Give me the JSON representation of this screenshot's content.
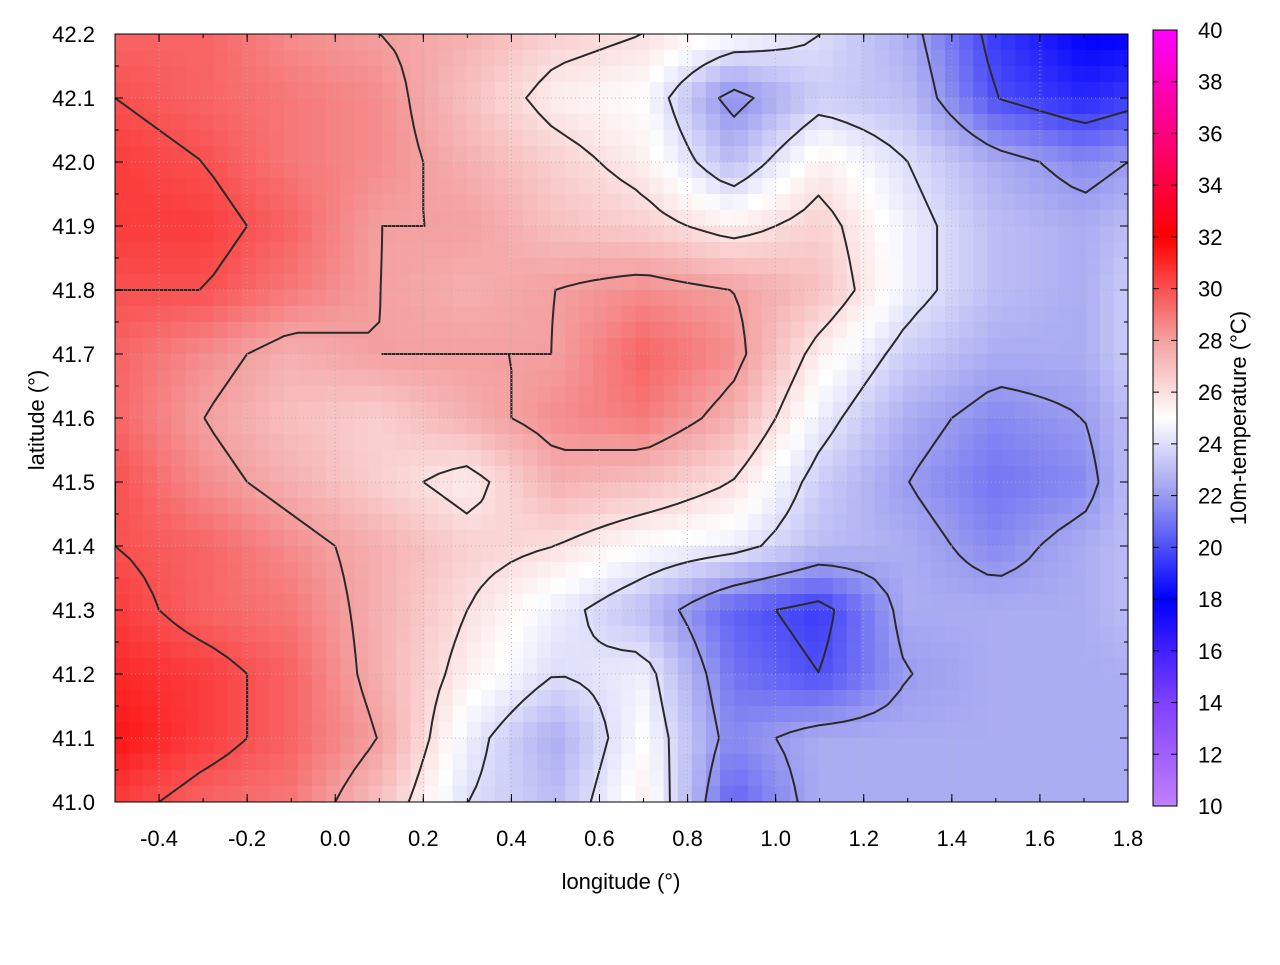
{
  "chart_data": {
    "type": "heatmap",
    "title": "",
    "xlabel": "longitude (°)",
    "ylabel": "latitude (°)",
    "xlim": [
      -0.5,
      1.8
    ],
    "ylim": [
      41.0,
      42.2
    ],
    "x_ticks": [
      "-0.4",
      "-0.2",
      "0.0",
      "0.2",
      "0.4",
      "0.6",
      "0.8",
      "1.0",
      "1.2",
      "1.4",
      "1.6",
      "1.8"
    ],
    "x_tick_values": [
      -0.4,
      -0.2,
      0.0,
      0.2,
      0.4,
      0.6,
      0.8,
      1.0,
      1.2,
      1.4,
      1.6,
      1.8
    ],
    "y_ticks": [
      "41.0",
      "41.1",
      "41.2",
      "41.3",
      "41.4",
      "41.5",
      "41.6",
      "41.7",
      "41.8",
      "41.9",
      "42.0",
      "42.1",
      "42.2"
    ],
    "y_tick_values": [
      41.0,
      41.1,
      41.2,
      41.3,
      41.4,
      41.5,
      41.6,
      41.7,
      41.8,
      41.9,
      42.0,
      42.1,
      42.2
    ],
    "grid": true,
    "colorbar": {
      "label": "10m-temperature (°C)",
      "range": [
        10,
        40
      ],
      "ticks": [
        "10",
        "12",
        "14",
        "16",
        "18",
        "20",
        "22",
        "24",
        "26",
        "28",
        "30",
        "32",
        "34",
        "36",
        "38",
        "40"
      ],
      "tick_values": [
        10,
        12,
        14,
        16,
        18,
        20,
        22,
        24,
        26,
        28,
        30,
        32,
        34,
        36,
        38,
        40
      ],
      "stops": [
        {
          "value": 10,
          "color": "#c080ff"
        },
        {
          "value": 14,
          "color": "#8040ff"
        },
        {
          "value": 18,
          "color": "#0000ff"
        },
        {
          "value": 22,
          "color": "#9a9cf0"
        },
        {
          "value": 25,
          "color": "#ffffff"
        },
        {
          "value": 28,
          "color": "#f4a0a0"
        },
        {
          "value": 32,
          "color": "#ff0000"
        },
        {
          "value": 36,
          "color": "#ff0080"
        },
        {
          "value": 40,
          "color": "#ff00ff"
        }
      ]
    },
    "field": {
      "x": [
        -0.5,
        -0.3,
        -0.1,
        0.1,
        0.3,
        0.5,
        0.7,
        0.9,
        1.1,
        1.3,
        1.5,
        1.7,
        1.8
      ],
      "y": [
        42.2,
        42.1,
        42.0,
        41.9,
        41.8,
        41.7,
        41.6,
        41.5,
        41.4,
        41.3,
        41.2,
        41.1,
        41.0
      ],
      "values": [
        [
          29.5,
          29.5,
          28.5,
          28.0,
          27.5,
          26.5,
          26.0,
          25.0,
          24.0,
          22.5,
          19.5,
          18.0,
          18.0
        ],
        [
          30.0,
          29.5,
          29.0,
          28.5,
          27.0,
          25.5,
          25.0,
          21.5,
          23.5,
          23.0,
          20.0,
          19.0,
          19.5
        ],
        [
          30.5,
          30.0,
          29.0,
          28.5,
          27.5,
          26.5,
          25.5,
          23.0,
          25.5,
          24.0,
          22.5,
          21.5,
          22.0
        ],
        [
          30.5,
          30.5,
          29.5,
          28.0,
          28.0,
          27.0,
          26.5,
          25.5,
          26.5,
          24.5,
          23.0,
          22.5,
          23.0
        ],
        [
          30.0,
          30.0,
          29.0,
          28.0,
          27.5,
          28.0,
          28.5,
          28.0,
          27.0,
          24.5,
          23.0,
          22.5,
          23.5
        ],
        [
          29.5,
          28.5,
          27.5,
          28.0,
          28.0,
          28.0,
          29.5,
          28.5,
          25.5,
          23.5,
          22.5,
          22.5,
          23.5
        ],
        [
          29.5,
          28.0,
          27.0,
          26.5,
          27.5,
          28.5,
          29.0,
          27.5,
          24.5,
          22.5,
          21.5,
          22.0,
          23.0
        ],
        [
          30.0,
          28.5,
          27.5,
          26.5,
          25.5,
          27.5,
          27.0,
          26.0,
          23.5,
          22.0,
          21.0,
          21.5,
          23.0
        ],
        [
          30.0,
          29.5,
          28.5,
          27.5,
          26.5,
          26.0,
          25.0,
          24.5,
          23.0,
          22.5,
          21.5,
          22.5,
          23.0
        ],
        [
          30.5,
          29.5,
          29.0,
          27.5,
          26.0,
          24.5,
          23.0,
          20.5,
          19.5,
          22.5,
          22.5,
          22.5,
          23.0
        ],
        [
          31.0,
          30.5,
          29.5,
          27.5,
          25.5,
          24.0,
          24.5,
          21.0,
          20.0,
          22.0,
          22.5,
          22.5,
          22.5
        ],
        [
          31.5,
          30.5,
          29.5,
          28.0,
          24.5,
          22.5,
          25.0,
          21.5,
          22.5,
          22.5,
          22.5,
          22.5,
          22.5
        ],
        [
          30.5,
          29.5,
          29.0,
          27.0,
          24.0,
          23.0,
          25.5,
          20.5,
          22.5,
          22.5,
          22.5,
          22.5,
          22.5
        ]
      ]
    },
    "contour_levels": [
      20,
      22,
      24,
      26,
      28,
      30
    ]
  }
}
